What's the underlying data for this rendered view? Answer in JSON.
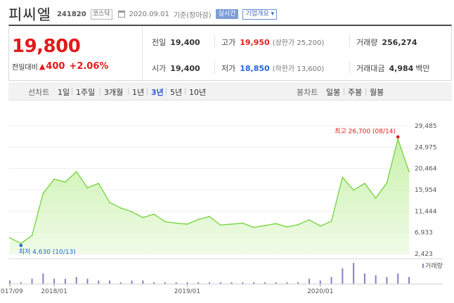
{
  "header": {
    "name": "피씨엘",
    "code": "241820",
    "market": "코스닥",
    "date": "2020.09.01",
    "basis": "기준(장마감)",
    "realtime": "실시간",
    "company_info": "기업개요",
    "company_info_arrow": "▾"
  },
  "quote": {
    "price": "19,800",
    "change_label": "전일대비",
    "change_arrow": "▲",
    "change_amount": "400",
    "change_pct": "+2.06%",
    "prev_close_label": "전일",
    "prev_close": "19,400",
    "open_label": "시가",
    "open": "19,400",
    "high_label": "고가",
    "high": "19,950",
    "upper_limit": "(상한가 25,200)",
    "low_label": "저가",
    "low": "18,850",
    "lower_limit": "(하한가 13,600)",
    "volume_label": "거래량",
    "volume": "256,274",
    "amount_label": "거래대금",
    "amount": "4,984",
    "amount_unit": "백만"
  },
  "toolbar": {
    "line_chart_label": "선차트",
    "periods": [
      "1일",
      "1주일",
      "3개월",
      "1년",
      "3년",
      "5년",
      "10년"
    ],
    "active_period": "3년",
    "candle_label": "봉차트",
    "candles": [
      "일봉",
      "주봉",
      "월봉"
    ]
  },
  "colors": {
    "up": "#e21b1b",
    "down": "#2466d8",
    "line": "#73d23a",
    "fill_top": "#c6f0a6",
    "volume_bar": "#8c7fbf"
  },
  "chart_data": {
    "type": "area",
    "title": "",
    "y_ticks": [
      "29,485",
      "24,975",
      "20,464",
      "15,954",
      "11,444",
      "6,933",
      "2,423"
    ],
    "ylim": [
      2423,
      29485
    ],
    "x_ticks": [
      "2017/09",
      "2018/01",
      "2019/01",
      "2020/01"
    ],
    "x": [
      "2017/09",
      "2017/10",
      "2017/11",
      "2017/12",
      "2018/01",
      "2018/02",
      "2018/03",
      "2018/04",
      "2018/05",
      "2018/06",
      "2018/07",
      "2018/08",
      "2018/09",
      "2018/10",
      "2018/11",
      "2018/12",
      "2019/01",
      "2019/02",
      "2019/03",
      "2019/04",
      "2019/05",
      "2019/06",
      "2019/07",
      "2019/08",
      "2019/09",
      "2019/10",
      "2019/11",
      "2019/12",
      "2020/01",
      "2020/02",
      "2020/03",
      "2020/04",
      "2020/05",
      "2020/06",
      "2020/07",
      "2020/08",
      "2020/09"
    ],
    "values": [
      5800,
      4630,
      6300,
      15200,
      18200,
      17600,
      19800,
      16400,
      17300,
      13300,
      12100,
      11300,
      10100,
      10800,
      9200,
      8900,
      8700,
      9700,
      10300,
      8500,
      8700,
      8900,
      8000,
      8400,
      8800,
      8100,
      8600,
      9600,
      8300,
      9300,
      18600,
      15900,
      17300,
      14200,
      17400,
      26700,
      19800
    ],
    "volume": [
      2,
      1,
      3,
      6,
      3,
      3,
      4,
      3,
      2,
      2,
      1,
      2,
      2,
      1,
      1,
      1,
      1,
      1,
      1,
      1,
      1,
      1,
      1,
      1,
      1,
      1,
      1,
      3,
      2,
      4,
      9,
      12,
      6,
      5,
      4,
      6,
      4
    ],
    "high_label": "최고 26,700 (08/14)",
    "low_label": "최저 4,630 (10/13)",
    "high_index": 35,
    "low_index": 1,
    "volume_legend": "거래량",
    "grid": true
  }
}
